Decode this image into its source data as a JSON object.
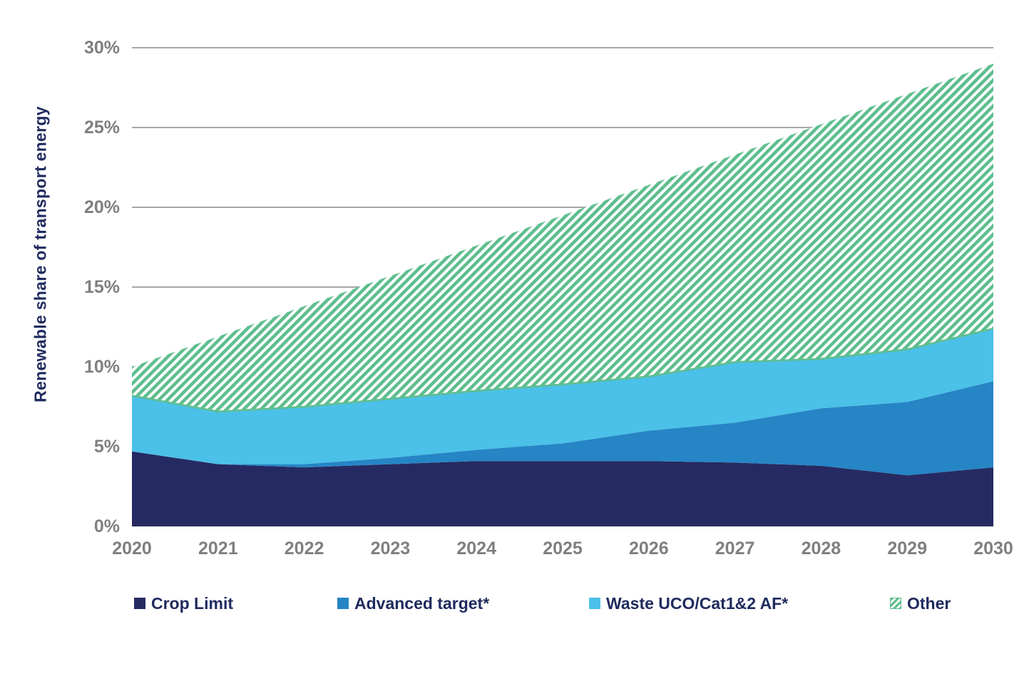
{
  "chart_data": {
    "type": "area",
    "stacked": true,
    "title": "",
    "xlabel": "",
    "ylabel": "Renewable share of transport energy",
    "categories": [
      "2020",
      "2021",
      "2022",
      "2023",
      "2024",
      "2025",
      "2026",
      "2027",
      "2028",
      "2029",
      "2030"
    ],
    "series": [
      {
        "name": "Crop Limit",
        "color": "#262a62",
        "pattern": "solid",
        "values": [
          4.7,
          3.9,
          3.7,
          3.9,
          4.1,
          4.1,
          4.1,
          4.0,
          3.8,
          3.2,
          3.7
        ]
      },
      {
        "name": "Advanced target*",
        "color": "#2585c5",
        "pattern": "solid",
        "values": [
          0,
          0,
          0.2,
          0.4,
          0.7,
          1.1,
          1.9,
          2.5,
          3.6,
          4.6,
          5.4
        ]
      },
      {
        "name": "Waste UCO/Cat1&2 AF*",
        "color": "#4bc0e8",
        "pattern": "solid",
        "values": [
          3.5,
          3.3,
          3.6,
          3.7,
          3.7,
          3.7,
          3.4,
          3.8,
          3.1,
          3.3,
          3.3
        ]
      },
      {
        "name": "Other",
        "color": "#5fbe8e",
        "pattern": "diagonal-hatch",
        "values": [
          1.8,
          4.7,
          6.3,
          7.7,
          9.1,
          10.6,
          12.0,
          13.0,
          14.7,
          16.0,
          16.6
        ]
      }
    ],
    "stacked_totals": [
      10.0,
      11.9,
      13.8,
      15.7,
      17.6,
      19.5,
      21.4,
      23.3,
      25.2,
      27.1,
      29.0
    ],
    "y_ticks": [
      {
        "label": "0%",
        "value": 0
      },
      {
        "label": "5%",
        "value": 5
      },
      {
        "label": "10%",
        "value": 10
      },
      {
        "label": "15%",
        "value": 15
      },
      {
        "label": "20%",
        "value": 20
      },
      {
        "label": "25%",
        "value": 25
      },
      {
        "label": "30%",
        "value": 30
      }
    ],
    "ylim": [
      0,
      30
    ],
    "grid": "horizontal",
    "legend_position": "bottom",
    "legend": [
      "Crop Limit",
      "Advanced target*",
      "Waste UCO/Cat1&2 AF*",
      "Other"
    ]
  },
  "colors": {
    "background": "#ffffff",
    "grid_line": "#a6a6a6",
    "tick_label": "#7f7f7f",
    "axis_title": "#1f2a5e",
    "legend_text": "#1f2a5e",
    "hatch_green": "#5fbe8e"
  }
}
